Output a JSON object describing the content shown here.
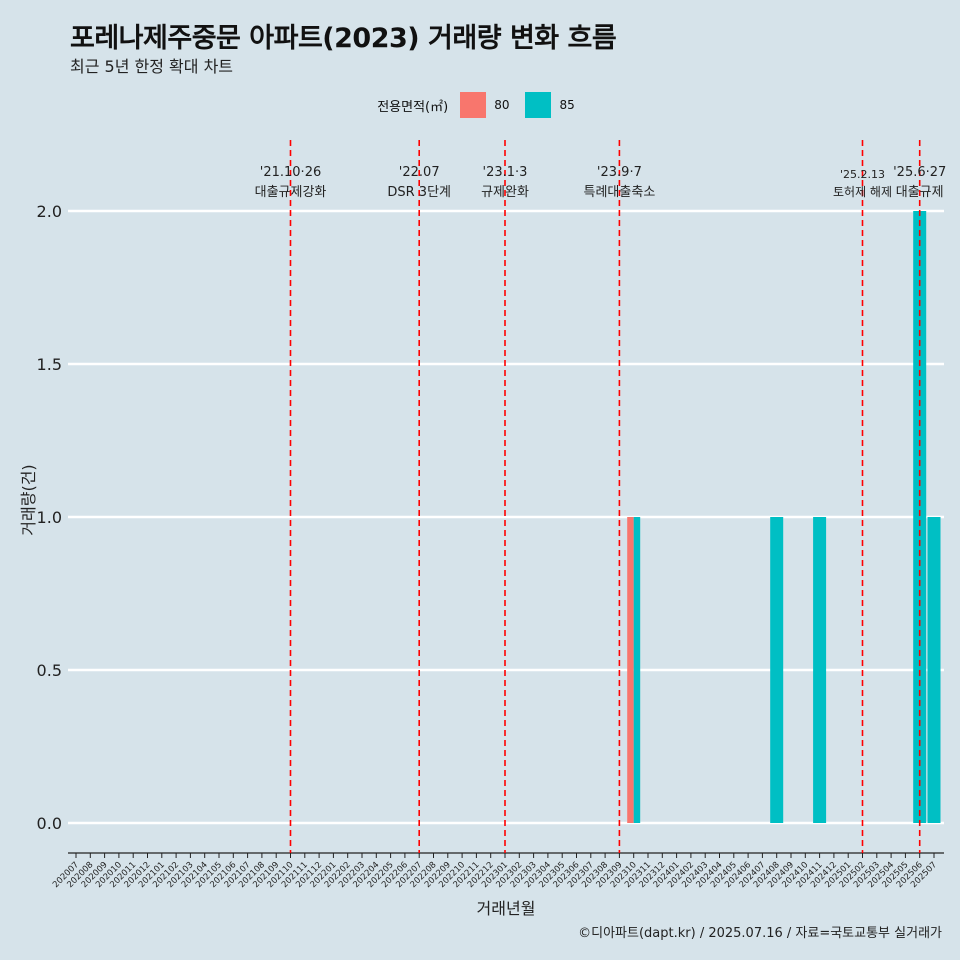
{
  "title": "포레나제주중문 아파트(2023) 거래량 변화 흐름",
  "subtitle": "최근 5년 한정 확대 차트",
  "caption": "©디아파트(dapt.kr) / 2025.07.16 / 자료=국토교통부 실거래가",
  "legend": {
    "title": "전용면적(㎡)",
    "items": [
      {
        "label": "80",
        "color": "#f8766d"
      },
      {
        "label": "85",
        "color": "#00bfc4"
      }
    ]
  },
  "chart_data": {
    "type": "bar",
    "xlabel": "거래년월",
    "ylabel": "거래량(건)",
    "ylim": [
      0,
      2
    ],
    "yticks": [
      0.0,
      0.5,
      1.0,
      1.5,
      2.0
    ],
    "ytick_labels": [
      "0.0",
      "0.5",
      "1.0",
      "1.5",
      "2.0"
    ],
    "grid": true,
    "legend_position": "top",
    "categories": [
      "202007",
      "202008",
      "202009",
      "202010",
      "202011",
      "202012",
      "202101",
      "202102",
      "202103",
      "202104",
      "202105",
      "202106",
      "202107",
      "202108",
      "202109",
      "202110",
      "202111",
      "202112",
      "202201",
      "202202",
      "202203",
      "202204",
      "202205",
      "202206",
      "202207",
      "202208",
      "202209",
      "202210",
      "202211",
      "202212",
      "202301",
      "202302",
      "202303",
      "202304",
      "202305",
      "202306",
      "202307",
      "202308",
      "202309",
      "202310",
      "202311",
      "202312",
      "202401",
      "202402",
      "202403",
      "202404",
      "202405",
      "202406",
      "202407",
      "202408",
      "202409",
      "202410",
      "202411",
      "202412",
      "202501",
      "202502",
      "202503",
      "202504",
      "202505",
      "202506",
      "202507"
    ],
    "series": [
      {
        "name": "80",
        "color": "#f8766d",
        "points": [
          {
            "x": "202310",
            "y": 1
          }
        ]
      },
      {
        "name": "85",
        "color": "#00bfc4",
        "points": [
          {
            "x": "202310",
            "y": 1
          },
          {
            "x": "202408",
            "y": 1
          },
          {
            "x": "202411",
            "y": 1
          },
          {
            "x": "202506",
            "y": 2
          },
          {
            "x": "202507",
            "y": 1
          }
        ]
      }
    ],
    "events": [
      {
        "x": "202110",
        "date": "'21.10·26",
        "label": "대출규제강화"
      },
      {
        "x": "202207",
        "date": "'22.07",
        "label": "DSR 3단계"
      },
      {
        "x": "202301",
        "date": "'23.1·3",
        "label": "규제완화"
      },
      {
        "x": "202309",
        "date": "'23.9·7",
        "label": "특례대출축소"
      },
      {
        "x": "202502",
        "date": "'25.2.13",
        "label": "토허제 해제"
      },
      {
        "x": "202506",
        "date": "'25.6·27",
        "label": "대출규제"
      }
    ]
  }
}
